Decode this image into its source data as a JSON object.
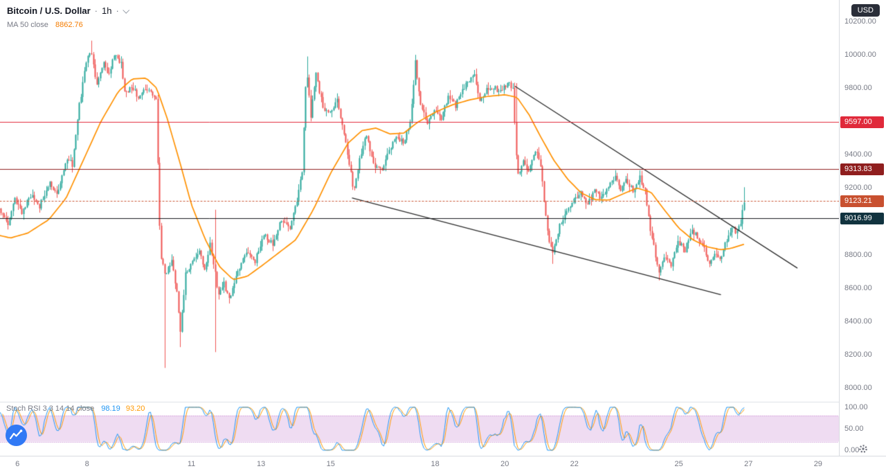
{
  "header": {
    "symbol": "Bitcoin / U.S. Dollar",
    "separator": "·",
    "interval": "1h",
    "ma_label": "MA 50 close",
    "ma_value": "8862.76"
  },
  "axis": {
    "currency": "USD",
    "price_ticks": [
      {
        "label": "10200.00",
        "price": 10200
      },
      {
        "label": "10000.00",
        "price": 10000
      },
      {
        "label": "9800.00",
        "price": 9800
      },
      {
        "label": "9600.00",
        "price": 9600
      },
      {
        "label": "9400.00",
        "price": 9400
      },
      {
        "label": "9200.00",
        "price": 9200
      },
      {
        "label": "9000.00",
        "price": 9000
      },
      {
        "label": "8800.00",
        "price": 8800
      },
      {
        "label": "8600.00",
        "price": 8600
      },
      {
        "label": "8400.00",
        "price": 8400
      },
      {
        "label": "8200.00",
        "price": 8200
      },
      {
        "label": "8000.00",
        "price": 8000
      }
    ],
    "stoch_ticks": [
      {
        "label": "100.00",
        "value": 100
      },
      {
        "label": "50.00",
        "value": 50
      },
      {
        "label": "0.00",
        "value": 0
      }
    ],
    "time_ticks": [
      {
        "label": "6",
        "day": 6
      },
      {
        "label": "8",
        "day": 8
      },
      {
        "label": "11",
        "day": 11
      },
      {
        "label": "13",
        "day": 13
      },
      {
        "label": "15",
        "day": 15
      },
      {
        "label": "18",
        "day": 18
      },
      {
        "label": "20",
        "day": 20
      },
      {
        "label": "22",
        "day": 22
      },
      {
        "label": "25",
        "day": 25
      },
      {
        "label": "27",
        "day": 27
      },
      {
        "label": "29",
        "day": 29
      }
    ]
  },
  "levels": [
    {
      "label": "9597.00",
      "price": 9597.0,
      "color": "#e0293a",
      "style": "solid"
    },
    {
      "label": "9313.83",
      "price": 9313.83,
      "color": "#8f1e1e",
      "style": "solid"
    },
    {
      "label": "9123.21",
      "price": 9123.21,
      "color": "#c8502f",
      "style": "dotted"
    },
    {
      "label": "9016.99",
      "price": 9016.99,
      "color": "#11333f",
      "line_color": "#17191d",
      "style": "solid"
    }
  ],
  "stoch": {
    "label": "Stoch RSI 3 3 14 14 close",
    "k_value": "98.19",
    "d_value": "93.20"
  },
  "chart_data": {
    "type": "candlestick",
    "title": "Bitcoin / U.S. Dollar 1h with MA 50 and Stoch RSI 3 3 14 14",
    "day_range": [
      5.5,
      29.6
    ],
    "price_top": 10329,
    "price_bottom": 7917,
    "ylim": [
      8000,
      10200
    ],
    "t_start": 4.0,
    "t_end": 26.9,
    "candle_step": 0.05,
    "colors": {
      "up": "#26a69a",
      "down": "#ef5350",
      "ma": "#ff9100",
      "trendline": "#2a2a2a"
    },
    "price_path": [
      [
        4.0,
        9150
      ],
      [
        4.4,
        9020
      ],
      [
        4.8,
        9120
      ],
      [
        5.1,
        9000
      ],
      [
        5.35,
        9080
      ],
      [
        5.55,
        9060
      ],
      [
        5.75,
        8980
      ],
      [
        5.95,
        9140
      ],
      [
        6.15,
        9050
      ],
      [
        6.4,
        9160
      ],
      [
        6.65,
        9090
      ],
      [
        6.95,
        9230
      ],
      [
        7.15,
        9160
      ],
      [
        7.45,
        9380
      ],
      [
        7.6,
        9340
      ],
      [
        7.8,
        9700
      ],
      [
        8.0,
        9960
      ],
      [
        8.12,
        10030
      ],
      [
        8.3,
        9820
      ],
      [
        8.5,
        9960
      ],
      [
        8.62,
        9870
      ],
      [
        8.82,
        10010
      ],
      [
        9.0,
        9940
      ],
      [
        9.12,
        9760
      ],
      [
        9.3,
        9810
      ],
      [
        9.5,
        9740
      ],
      [
        9.7,
        9800
      ],
      [
        9.88,
        9770
      ],
      [
        10.0,
        9730
      ],
      [
        10.12,
        8820
      ],
      [
        10.25,
        8680
      ],
      [
        10.45,
        8760
      ],
      [
        10.58,
        8610
      ],
      [
        10.7,
        8340
      ],
      [
        10.85,
        8680
      ],
      [
        11.05,
        8760
      ],
      [
        11.25,
        8820
      ],
      [
        11.42,
        8700
      ],
      [
        11.55,
        8870
      ],
      [
        11.66,
        8730
      ],
      [
        11.8,
        8560
      ],
      [
        11.95,
        8630
      ],
      [
        12.1,
        8530
      ],
      [
        12.35,
        8700
      ],
      [
        12.6,
        8820
      ],
      [
        12.85,
        8760
      ],
      [
        13.1,
        8920
      ],
      [
        13.35,
        8860
      ],
      [
        13.6,
        9010
      ],
      [
        13.85,
        8960
      ],
      [
        14.05,
        9130
      ],
      [
        14.2,
        9300
      ],
      [
        14.32,
        9920
      ],
      [
        14.45,
        9640
      ],
      [
        14.6,
        9890
      ],
      [
        14.8,
        9680
      ],
      [
        15.0,
        9650
      ],
      [
        15.2,
        9730
      ],
      [
        15.45,
        9470
      ],
      [
        15.68,
        9180
      ],
      [
        15.9,
        9420
      ],
      [
        16.05,
        9520
      ],
      [
        16.25,
        9340
      ],
      [
        16.5,
        9310
      ],
      [
        16.7,
        9430
      ],
      [
        16.9,
        9510
      ],
      [
        17.1,
        9470
      ],
      [
        17.3,
        9590
      ],
      [
        17.45,
        9950
      ],
      [
        17.6,
        9700
      ],
      [
        17.8,
        9590
      ],
      [
        18.0,
        9670
      ],
      [
        18.2,
        9620
      ],
      [
        18.4,
        9750
      ],
      [
        18.6,
        9700
      ],
      [
        18.8,
        9790
      ],
      [
        19.0,
        9850
      ],
      [
        19.15,
        9880
      ],
      [
        19.3,
        9720
      ],
      [
        19.5,
        9790
      ],
      [
        19.7,
        9800
      ],
      [
        19.9,
        9780
      ],
      [
        20.1,
        9830
      ],
      [
        20.25,
        9800
      ],
      [
        20.38,
        9270
      ],
      [
        20.55,
        9360
      ],
      [
        20.7,
        9300
      ],
      [
        20.9,
        9430
      ],
      [
        21.05,
        9340
      ],
      [
        21.22,
        8980
      ],
      [
        21.38,
        8800
      ],
      [
        21.6,
        8970
      ],
      [
        21.8,
        9060
      ],
      [
        22.0,
        9130
      ],
      [
        22.2,
        9170
      ],
      [
        22.4,
        9100
      ],
      [
        22.6,
        9190
      ],
      [
        22.8,
        9140
      ],
      [
        23.0,
        9210
      ],
      [
        23.2,
        9270
      ],
      [
        23.35,
        9190
      ],
      [
        23.5,
        9250
      ],
      [
        23.7,
        9180
      ],
      [
        23.9,
        9260
      ],
      [
        24.05,
        9180
      ],
      [
        24.2,
        8950
      ],
      [
        24.45,
        8690
      ],
      [
        24.6,
        8790
      ],
      [
        24.8,
        8740
      ],
      [
        25.0,
        8880
      ],
      [
        25.2,
        8830
      ],
      [
        25.4,
        8950
      ],
      [
        25.55,
        8900
      ],
      [
        25.72,
        8850
      ],
      [
        25.9,
        8740
      ],
      [
        26.05,
        8810
      ],
      [
        26.2,
        8770
      ],
      [
        26.4,
        8890
      ],
      [
        26.55,
        8960
      ],
      [
        26.7,
        8940
      ],
      [
        26.82,
        9000
      ],
      [
        26.88,
        9125
      ]
    ],
    "ma_path": [
      [
        4.0,
        9040
      ],
      [
        4.6,
        8980
      ],
      [
        5.2,
        8930
      ],
      [
        5.8,
        8900
      ],
      [
        6.3,
        8930
      ],
      [
        6.9,
        9010
      ],
      [
        7.4,
        9140
      ],
      [
        7.9,
        9370
      ],
      [
        8.4,
        9600
      ],
      [
        8.9,
        9780
      ],
      [
        9.3,
        9855
      ],
      [
        9.7,
        9860
      ],
      [
        10.0,
        9800
      ],
      [
        10.3,
        9620
      ],
      [
        10.7,
        9330
      ],
      [
        11.0,
        9100
      ],
      [
        11.4,
        8890
      ],
      [
        11.8,
        8730
      ],
      [
        12.2,
        8650
      ],
      [
        12.6,
        8670
      ],
      [
        13.0,
        8730
      ],
      [
        13.5,
        8810
      ],
      [
        14.0,
        8890
      ],
      [
        14.5,
        9070
      ],
      [
        15.0,
        9290
      ],
      [
        15.5,
        9470
      ],
      [
        15.9,
        9545
      ],
      [
        16.3,
        9560
      ],
      [
        16.7,
        9525
      ],
      [
        17.1,
        9530
      ],
      [
        17.5,
        9595
      ],
      [
        18.0,
        9655
      ],
      [
        18.5,
        9700
      ],
      [
        19.0,
        9730
      ],
      [
        19.5,
        9750
      ],
      [
        20.0,
        9760
      ],
      [
        20.35,
        9745
      ],
      [
        20.7,
        9640
      ],
      [
        21.0,
        9520
      ],
      [
        21.4,
        9370
      ],
      [
        21.8,
        9255
      ],
      [
        22.2,
        9170
      ],
      [
        22.6,
        9130
      ],
      [
        23.0,
        9128
      ],
      [
        23.4,
        9165
      ],
      [
        23.8,
        9200
      ],
      [
        24.2,
        9175
      ],
      [
        24.6,
        9065
      ],
      [
        25.0,
        8960
      ],
      [
        25.4,
        8890
      ],
      [
        25.8,
        8848
      ],
      [
        26.2,
        8830
      ],
      [
        26.5,
        8838
      ],
      [
        26.88,
        8863
      ]
    ],
    "spikes": [
      {
        "day": 8.12,
        "high": 10085
      },
      {
        "day": 10.22,
        "low": 8120
      },
      {
        "day": 10.7,
        "low": 8245
      },
      {
        "day": 11.66,
        "low": 8215,
        "high": 9070
      },
      {
        "day": 14.32,
        "high": 9990
      },
      {
        "day": 17.45,
        "high": 10000
      },
      {
        "day": 20.3,
        "high": 9830
      },
      {
        "day": 21.38,
        "low": 8745
      },
      {
        "day": 24.45,
        "low": 8645
      },
      {
        "day": 26.88,
        "high": 9205
      }
    ],
    "trendlines": [
      [
        [
          20.3,
          9810
        ],
        [
          28.4,
          8720
        ]
      ],
      [
        [
          15.62,
          9140
        ],
        [
          26.2,
          8560
        ]
      ]
    ],
    "stoch_pane": {
      "y0": 650,
      "y100": 588,
      "band": [
        20,
        80
      ],
      "k_color": "#2196f3",
      "d_color": "#ff9800",
      "band_fill": "rgba(206,147,216,0.32)",
      "band_edge": "rgba(171,71,188,0.5)",
      "rsi_period": 14,
      "stoch_period": 14,
      "smooth_k": 3,
      "smooth_d": 3
    }
  }
}
